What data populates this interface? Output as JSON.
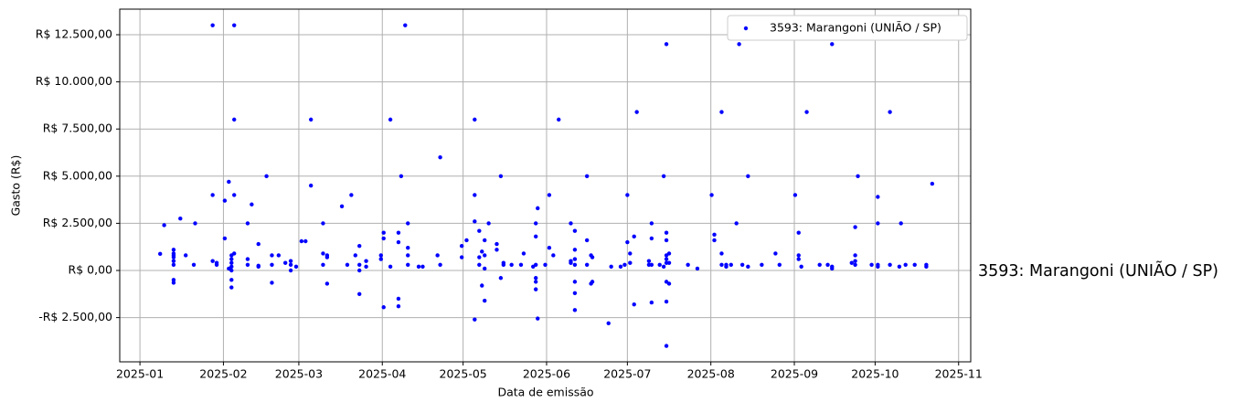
{
  "chart_data": {
    "type": "scatter",
    "x_label": "Data de emissão",
    "y_label": "Gasto (R$)",
    "annotation": "3593: Marangoni (UNIÃO / SP)",
    "legend": "upper right",
    "grid": true,
    "xlim": [
      -7.5,
      308.5
    ],
    "ylim": [
      -4845,
      13856
    ],
    "xticks": [
      {
        "value": 0,
        "label": "2025-01"
      },
      {
        "value": 31,
        "label": "2025-02"
      },
      {
        "value": 59,
        "label": "2025-03"
      },
      {
        "value": 90,
        "label": "2025-04"
      },
      {
        "value": 120,
        "label": "2025-05"
      },
      {
        "value": 151,
        "label": "2025-06"
      },
      {
        "value": 181,
        "label": "2025-07"
      },
      {
        "value": 212,
        "label": "2025-08"
      },
      {
        "value": 243,
        "label": "2025-09"
      },
      {
        "value": 273,
        "label": "2025-10"
      },
      {
        "value": 304,
        "label": "2025-11"
      }
    ],
    "yticks": [
      {
        "value": -2500,
        "label": "-R$ 2.500,00"
      },
      {
        "value": 0,
        "label": "R$ 0,00"
      },
      {
        "value": 2500,
        "label": "R$ 2.500,00"
      },
      {
        "value": 5000,
        "label": "R$ 5.000,00"
      },
      {
        "value": 7500,
        "label": "R$ 7.500,00"
      },
      {
        "value": 10000,
        "label": "R$ 10.000,00"
      },
      {
        "value": 12500,
        "label": "R$ 12.500,00"
      }
    ],
    "series": [
      {
        "name": "3593: Marangoni (UNIÃO / SP)",
        "color": "#0000ff",
        "x": [
          7.5,
          9,
          12.5,
          12.5,
          12.5,
          12.5,
          12.5,
          12.5,
          12.5,
          12.5,
          15,
          17,
          20,
          20.5,
          27,
          27,
          27,
          28.5,
          28.5,
          31.5,
          31.5,
          33,
          33,
          34,
          34,
          34,
          34,
          34,
          34,
          34,
          35,
          35,
          35,
          35,
          40,
          40,
          40,
          41.5,
          44,
          44,
          44,
          47,
          49,
          49,
          49,
          51.5,
          54,
          56,
          56,
          56,
          58,
          60,
          61.5,
          63.5,
          63.5,
          68,
          68,
          68,
          69.5,
          69.5,
          69.5,
          75,
          77,
          78.5,
          80,
          81.5,
          81.5,
          81.5,
          81.5,
          84,
          84,
          89.5,
          89.5,
          90.5,
          90.5,
          90.5,
          93,
          93,
          96,
          96,
          96,
          96,
          97,
          98.5,
          99.5,
          99.5,
          99.5,
          99.5,
          103.5,
          105,
          110.5,
          111.5,
          111.5,
          119.5,
          119.5,
          121.3,
          124.3,
          124.3,
          124.3,
          124.3,
          126,
          126,
          126,
          127,
          127,
          128,
          128,
          128,
          128,
          129.5,
          132.5,
          132.5,
          134,
          134,
          135,
          135,
          138,
          141.5,
          142.5,
          146,
          147,
          147,
          147,
          147,
          147,
          147,
          147.7,
          147.7,
          150.5,
          152,
          152,
          153.5,
          155.5,
          160,
          160,
          160,
          161.5,
          161.5,
          161.5,
          161.5,
          161.5,
          161.5,
          161.5,
          166,
          166,
          166,
          167.5,
          167.5,
          168,
          168,
          174,
          175,
          178.5,
          180,
          181,
          181,
          182,
          182,
          183.5,
          183.5,
          184.5,
          189,
          189,
          190,
          190,
          190,
          190,
          193,
          194.5,
          194.5,
          195.5,
          195.5,
          195.5,
          195.5,
          195.5,
          195.5,
          195.5,
          195.5,
          195.5,
          196.5,
          196.5,
          196.5,
          203.5,
          207,
          212.3,
          213.3,
          213.3,
          216,
          216,
          216,
          217.7,
          217.7,
          219.5,
          221.5,
          222.5,
          223.7,
          225.8,
          225.8,
          230.9,
          236,
          237.5,
          243.3,
          244.6,
          244.6,
          244.6,
          245.6,
          247.6,
          252.4,
          255.4,
          257,
          257,
          257,
          264.3,
          265.6,
          265.6,
          265.6,
          265.6,
          266.6,
          271.7,
          274,
          274,
          274,
          274,
          278.5,
          278.5,
          282,
          282.6,
          284.3,
          287.7,
          292,
          292,
          294.2
        ],
        "values": [
          880,
          2400,
          1100,
          900,
          800,
          700,
          500,
          300,
          -500,
          -650,
          2750,
          800,
          300,
          2500,
          13000,
          4000,
          500,
          400,
          300,
          1700,
          3700,
          4700,
          100,
          800,
          600,
          400,
          200,
          -500,
          -900,
          0,
          13000,
          8000,
          4000,
          900,
          2500,
          300,
          600,
          3500,
          1400,
          250,
          200,
          5000,
          300,
          -650,
          800,
          800,
          400,
          300,
          0,
          500,
          200,
          1550,
          1550,
          8000,
          4500,
          2500,
          900,
          300,
          700,
          -700,
          800,
          3400,
          300,
          4000,
          800,
          1300,
          -1250,
          0,
          300,
          500,
          200,
          800,
          600,
          2000,
          1700,
          -1950,
          8000,
          200,
          2000,
          1500,
          -1500,
          -1900,
          5000,
          13000,
          2500,
          1200,
          800,
          300,
          200,
          200,
          800,
          6000,
          300,
          1300,
          700,
          1600,
          8000,
          4000,
          2600,
          -2600,
          2100,
          700,
          300,
          -800,
          1000,
          800,
          100,
          -1600,
          1600,
          2500,
          1100,
          1400,
          5000,
          -400,
          300,
          400,
          300,
          300,
          900,
          200,
          2500,
          300,
          -400,
          -600,
          -1000,
          1800,
          3300,
          -2550,
          300,
          4000,
          1200,
          800,
          8000,
          2500,
          500,
          400,
          2100,
          1100,
          600,
          300,
          -600,
          -1200,
          -2100,
          5000,
          1600,
          300,
          800,
          -700,
          700,
          -600,
          -2800,
          200,
          200,
          300,
          4000,
          1500,
          900,
          400,
          1800,
          -1800,
          8400,
          300,
          500,
          2500,
          1700,
          -1700,
          300,
          300,
          5000,
          200,
          12000,
          2000,
          1600,
          800,
          600,
          400,
          -600,
          -1650,
          -4000,
          900,
          400,
          -700,
          300,
          100,
          4000,
          1900,
          1600,
          8400,
          900,
          300,
          200,
          300,
          300,
          2500,
          12000,
          300,
          5000,
          200,
          300,
          900,
          300,
          4000,
          2000,
          800,
          600,
          200,
          8400,
          300,
          300,
          12000,
          200,
          100,
          400,
          2300,
          800,
          500,
          300,
          5000,
          300,
          3900,
          2500,
          300,
          200,
          8400,
          300,
          200,
          2500,
          300,
          300,
          300,
          200,
          4600
        ]
      }
    ]
  }
}
